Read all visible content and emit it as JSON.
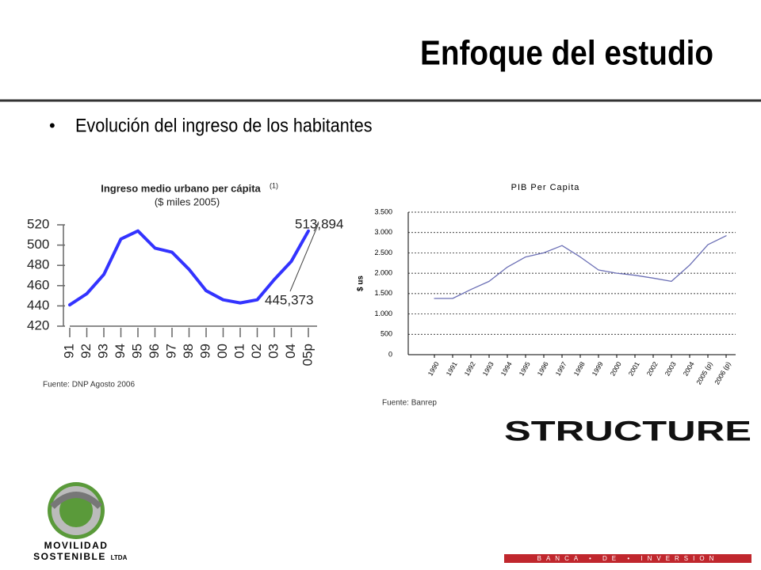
{
  "title": "Enfoque del estudio",
  "bullet": "Evolución del ingreso de los habitantes",
  "chart_data": [
    {
      "type": "line",
      "title": "Ingreso medio urbano per cápita",
      "title_note": "(1)",
      "subtitle": "($ miles 2005)",
      "categories": [
        "91",
        "92",
        "93",
        "94",
        "95",
        "96",
        "97",
        "98",
        "99",
        "00",
        "01",
        "02",
        "03",
        "04",
        "05p"
      ],
      "values": [
        441,
        452,
        471,
        506,
        514,
        497,
        493,
        476,
        455,
        446,
        443,
        446,
        466,
        484,
        513.894
      ],
      "color": "#3333ff",
      "ylim": [
        420,
        520
      ],
      "yticks": [
        420,
        440,
        460,
        480,
        500,
        520
      ],
      "annotations": [
        "513,894",
        "445,373"
      ],
      "source": "Fuente: DNP Agosto 2006"
    },
    {
      "type": "line",
      "title": "PIB Per Capita",
      "ylabel": "$ us",
      "categories": [
        "1990",
        "1991",
        "1992",
        "1993",
        "1994",
        "1995",
        "1996",
        "1997",
        "1998",
        "1999",
        "2000",
        "2001",
        "2002",
        "2003",
        "2004",
        "2005 (p)",
        "2006 (p)"
      ],
      "values": [
        1380,
        1380,
        1600,
        1800,
        2150,
        2400,
        2500,
        2680,
        2400,
        2080,
        2000,
        1950,
        1880,
        1800,
        2200,
        2700,
        2920
      ],
      "color": "#6b6fb5",
      "ylim": [
        0,
        3500
      ],
      "yticks": [
        0,
        500,
        {
          "value": 1000,
          "label": "1.000"
        },
        {
          "value": 1500,
          "label": "1.500"
        },
        {
          "value": 2000,
          "label": "2.000"
        },
        {
          "value": 2500,
          "label": "2.500"
        },
        {
          "value": 3000,
          "label": "3.000"
        },
        {
          "value": 3500,
          "label": "3.500"
        }
      ],
      "grid": true,
      "source": "Fuente: Banrep"
    }
  ],
  "logos": {
    "left": [
      "MOVILIDAD",
      "SOSTENIBLE",
      "LTDA"
    ],
    "right": [
      "STRUCTURE",
      "BANCA • DE • INVERSION"
    ]
  }
}
